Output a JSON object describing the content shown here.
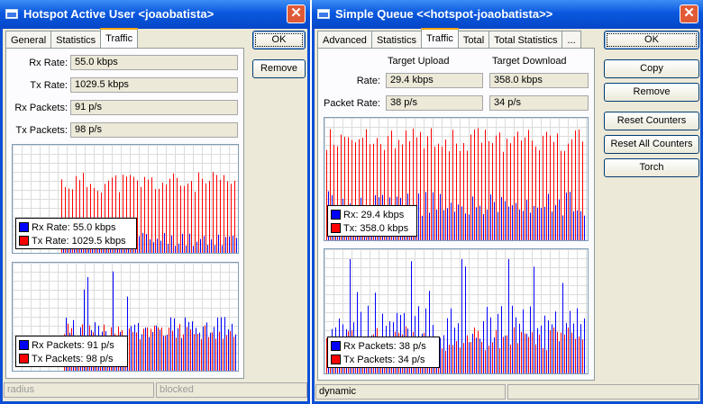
{
  "colors": {
    "rx": "#0000ff",
    "tx": "#ff0000",
    "title_bar": "#0a58df"
  },
  "hotspot": {
    "title": "Hotspot Active User <joaobatista>",
    "tabs": [
      "General",
      "Statistics",
      "Traffic"
    ],
    "active_tab": "Traffic",
    "buttons": {
      "ok": "OK",
      "remove": "Remove"
    },
    "fields": {
      "rx_rate": {
        "label": "Rx Rate:",
        "value": "55.0 kbps"
      },
      "tx_rate": {
        "label": "Tx Rate:",
        "value": "1029.5 kbps"
      },
      "rx_packets": {
        "label": "Rx Packets:",
        "value": "91 p/s"
      },
      "tx_packets": {
        "label": "Tx Packets:",
        "value": "98 p/s"
      }
    },
    "rate_legend": {
      "rx": "Rx Rate:  55.0 kbps",
      "tx": "Tx Rate:  1029.5 kbps"
    },
    "packet_legend": {
      "rx": "Rx Packets:  91 p/s",
      "tx": "Tx Packets:  98 p/s"
    },
    "status": [
      "radius",
      "blocked"
    ]
  },
  "queue": {
    "title": "Simple Queue <<hotspot-joaobatista>>",
    "tabs": [
      "Advanced",
      "Statistics",
      "Traffic",
      "Total",
      "Total Statistics",
      "..."
    ],
    "active_tab": "Traffic",
    "col_upload": "Target Upload",
    "col_download": "Target Download",
    "rate": {
      "label": "Rate:",
      "upload": "29.4 kbps",
      "download": "358.0 kbps"
    },
    "packet_rate": {
      "label": "Packet Rate:",
      "upload": "38 p/s",
      "download": "34 p/s"
    },
    "buttons": {
      "ok": "OK",
      "copy": "Copy",
      "remove": "Remove",
      "reset_counters": "Reset Counters",
      "reset_all": "Reset All Counters",
      "torch": "Torch"
    },
    "rate_legend": {
      "rx": "Rx:  29.4 kbps",
      "tx": "Tx:  358.0 kbps"
    },
    "packet_legend": {
      "rx": "Rx Packets:  38 p/s",
      "tx": "Tx Packets:  34 p/s"
    },
    "status": [
      "dynamic",
      ""
    ]
  }
}
